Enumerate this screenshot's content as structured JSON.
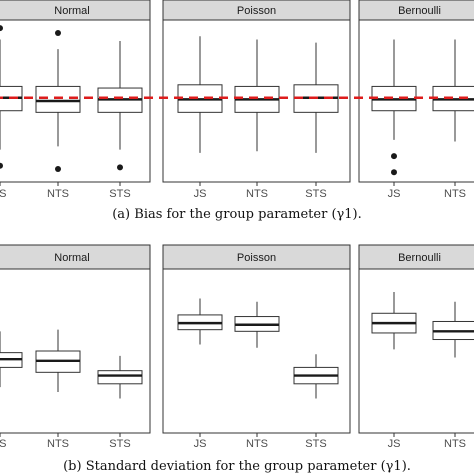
{
  "figure": {
    "caption_a": "(a) Bias for the group parameter (γ1).",
    "caption_b": "(b) Standard deviation for the group parameter (γ1)."
  },
  "chart_data": [
    {
      "type": "boxplot",
      "panel": "a",
      "reference_line": {
        "style": "dashed",
        "color": "#dd1c1c"
      },
      "grid": false,
      "facets": [
        {
          "label": "Normal",
          "categories": [
            "JS",
            "NTS",
            "STS"
          ],
          "boxes": [
            {
              "category": "JS",
              "whisker_low": 0.2,
              "q1": 0.44,
              "median": 0.52,
              "q3": 0.59,
              "whisker_high": 0.88,
              "outliers": [
                0.1,
                0.95
              ]
            },
            {
              "category": "NTS",
              "whisker_low": 0.22,
              "q1": 0.43,
              "median": 0.5,
              "q3": 0.59,
              "whisker_high": 0.82,
              "outliers": [
                0.08,
                0.92
              ]
            },
            {
              "category": "STS",
              "whisker_low": 0.2,
              "q1": 0.43,
              "median": 0.51,
              "q3": 0.58,
              "whisker_high": 0.87,
              "outliers": [
                0.09
              ]
            }
          ]
        },
        {
          "label": "Poisson",
          "categories": [
            "JS",
            "NTS",
            "STS"
          ],
          "boxes": [
            {
              "category": "JS",
              "whisker_low": 0.18,
              "q1": 0.43,
              "median": 0.51,
              "q3": 0.6,
              "whisker_high": 0.9,
              "outliers": []
            },
            {
              "category": "NTS",
              "whisker_low": 0.19,
              "q1": 0.43,
              "median": 0.51,
              "q3": 0.59,
              "whisker_high": 0.88,
              "outliers": []
            },
            {
              "category": "STS",
              "whisker_low": 0.18,
              "q1": 0.43,
              "median": 0.52,
              "q3": 0.6,
              "whisker_high": 0.86,
              "outliers": []
            }
          ]
        },
        {
          "label": "Bernoulli",
          "categories": [
            "JS",
            "NTS"
          ],
          "boxes": [
            {
              "category": "JS",
              "whisker_low": 0.26,
              "q1": 0.44,
              "median": 0.51,
              "q3": 0.59,
              "whisker_high": 0.88,
              "outliers": [
                0.06,
                0.16
              ]
            },
            {
              "category": "NTS",
              "whisker_low": 0.25,
              "q1": 0.44,
              "median": 0.51,
              "q3": 0.59,
              "whisker_high": 0.88,
              "outliers": []
            }
          ]
        }
      ]
    },
    {
      "type": "boxplot",
      "panel": "b",
      "grid": false,
      "facets": [
        {
          "label": "Normal",
          "categories": [
            "JS",
            "NTS",
            "STS"
          ],
          "boxes": [
            {
              "category": "JS",
              "whisker_low": 0.28,
              "q1": 0.4,
              "median": 0.45,
              "q3": 0.49,
              "whisker_high": 0.62,
              "outliers": []
            },
            {
              "category": "NTS",
              "whisker_low": 0.25,
              "q1": 0.37,
              "median": 0.44,
              "q3": 0.5,
              "whisker_high": 0.63,
              "outliers": []
            },
            {
              "category": "STS",
              "whisker_low": 0.21,
              "q1": 0.3,
              "median": 0.35,
              "q3": 0.38,
              "whisker_high": 0.47,
              "outliers": []
            }
          ]
        },
        {
          "label": "Poisson",
          "categories": [
            "JS",
            "NTS",
            "STS"
          ],
          "boxes": [
            {
              "category": "JS",
              "whisker_low": 0.54,
              "q1": 0.63,
              "median": 0.67,
              "q3": 0.72,
              "whisker_high": 0.82,
              "outliers": []
            },
            {
              "category": "NTS",
              "whisker_low": 0.52,
              "q1": 0.62,
              "median": 0.66,
              "q3": 0.71,
              "whisker_high": 0.8,
              "outliers": []
            },
            {
              "category": "STS",
              "whisker_low": 0.21,
              "q1": 0.3,
              "median": 0.35,
              "q3": 0.4,
              "whisker_high": 0.48,
              "outliers": []
            }
          ]
        },
        {
          "label": "Bernoulli",
          "categories": [
            "JS",
            "NTS"
          ],
          "boxes": [
            {
              "category": "JS",
              "whisker_low": 0.51,
              "q1": 0.61,
              "median": 0.67,
              "q3": 0.73,
              "whisker_high": 0.86,
              "outliers": []
            },
            {
              "category": "NTS",
              "whisker_low": 0.46,
              "q1": 0.57,
              "median": 0.62,
              "q3": 0.68,
              "whisker_high": 0.8,
              "outliers": []
            }
          ]
        }
      ]
    }
  ]
}
